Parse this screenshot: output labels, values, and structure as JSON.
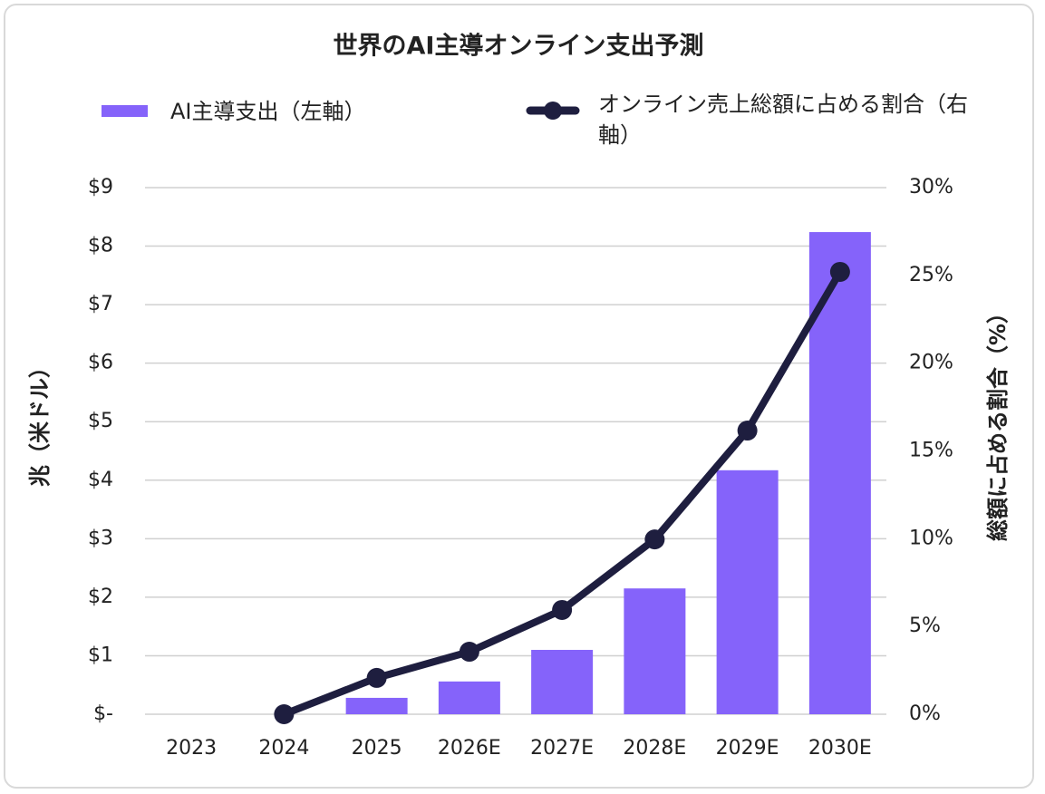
{
  "chart_data": {
    "type": "bar",
    "title": "世界のAI主導オンライン支出予測",
    "categories": [
      "2023",
      "2024",
      "2025",
      "2026E",
      "2027E",
      "2028E",
      "2029E",
      "2030E"
    ],
    "series": [
      {
        "name": "AI主導支出（左軸）",
        "color": "#8563fa",
        "type": "bar",
        "values": [
          null,
          null,
          0.28,
          0.56,
          1.1,
          2.15,
          4.17,
          8.24
        ]
      },
      {
        "name": "オンライン売上総額に占める割合（右軸）",
        "color": "#1e1e3f",
        "type": "line",
        "axis": "y2",
        "values": [
          null,
          0,
          2.07,
          3.56,
          5.94,
          9.96,
          16.16,
          25.2
        ]
      }
    ],
    "ylabel": "兆（米ドル）",
    "y2label": "総額に占める割合（%）",
    "ylim": [
      0,
      9
    ],
    "yticks": [
      {
        "value": 0,
        "label": "$-"
      },
      {
        "value": 1,
        "label": "$1"
      },
      {
        "value": 2,
        "label": "$2"
      },
      {
        "value": 3,
        "label": "$3"
      },
      {
        "value": 4,
        "label": "$4"
      },
      {
        "value": 5,
        "label": "$5"
      },
      {
        "value": 6,
        "label": "$6"
      },
      {
        "value": 7,
        "label": "$7"
      },
      {
        "value": 8,
        "label": "$8"
      },
      {
        "value": 9,
        "label": "$9"
      }
    ],
    "y2lim": [
      0,
      30
    ],
    "y2ticks": [
      {
        "value": 0,
        "label": "0%"
      },
      {
        "value": 5,
        "label": "5%"
      },
      {
        "value": 10,
        "label": "10%"
      },
      {
        "value": 15,
        "label": "15%"
      },
      {
        "value": 20,
        "label": "20%"
      },
      {
        "value": 25,
        "label": "25%"
      },
      {
        "value": 30,
        "label": "30%"
      }
    ],
    "grid": true
  }
}
